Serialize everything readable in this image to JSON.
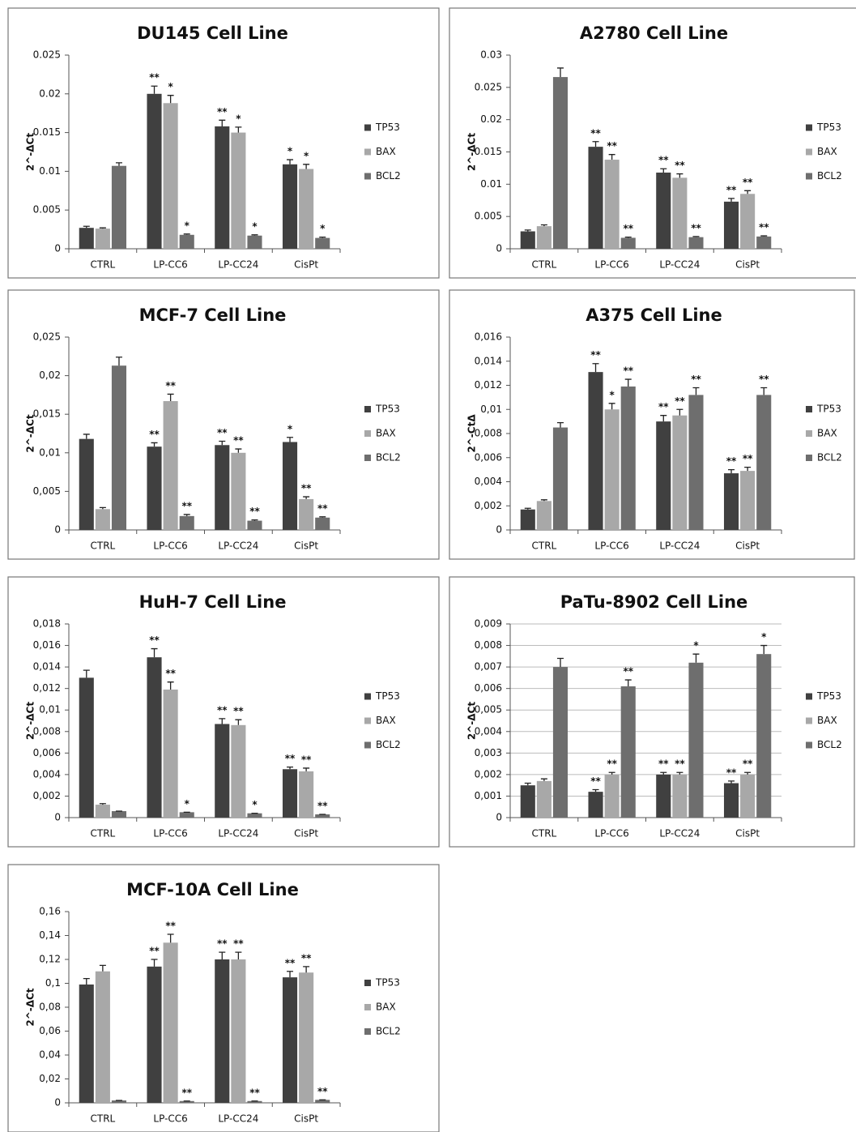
{
  "chart_data": [
    {
      "type": "bar",
      "title": "DU145 Cell Line",
      "y_label": "2^-ΔCt",
      "categories": [
        "CTRL",
        "LP-CC6",
        "LP-CC24",
        "CisPt"
      ],
      "ylim": [
        0,
        0.025
      ],
      "yticks": [
        0,
        0.005,
        0.01,
        0.015,
        0.02,
        0.025
      ],
      "grid": false,
      "series": [
        {
          "name": "TP53",
          "color": "#404040",
          "values": [
            0.0027,
            0.02,
            0.0158,
            0.0109
          ],
          "errors": [
            0.0002,
            0.001,
            0.0008,
            0.0006
          ],
          "annotations": [
            null,
            "**",
            "**",
            "*"
          ]
        },
        {
          "name": "BAX",
          "color": "#a8a8a8",
          "values": [
            0.0026,
            0.0188,
            0.015,
            0.0103
          ],
          "errors": [
            0.0001,
            0.001,
            0.0007,
            0.0006
          ],
          "annotations": [
            null,
            "*",
            "*",
            "*"
          ]
        },
        {
          "name": "BCL2",
          "color": "#6e6e6e",
          "values": [
            0.0107,
            0.0018,
            0.0017,
            0.0014
          ],
          "errors": [
            0.0004,
            0.0001,
            0.0001,
            0.0001
          ],
          "annotations": [
            null,
            "*",
            "*",
            "*"
          ]
        }
      ]
    },
    {
      "type": "bar",
      "title": "A2780 Cell Line",
      "y_label": "2^-ΔCt",
      "categories": [
        "CTRL",
        "LP-CC6",
        "LP-CC24",
        "CisPt"
      ],
      "ylim": [
        0,
        0.03
      ],
      "yticks": [
        0,
        0.005,
        0.01,
        0.015,
        0.02,
        0.025,
        0.03
      ],
      "grid": false,
      "series": [
        {
          "name": "TP53",
          "color": "#404040",
          "values": [
            0.0027,
            0.0158,
            0.0118,
            0.0073
          ],
          "errors": [
            0.0002,
            0.0008,
            0.0006,
            0.0005
          ],
          "annotations": [
            null,
            "**",
            "**",
            "**"
          ]
        },
        {
          "name": "BAX",
          "color": "#a8a8a8",
          "values": [
            0.0035,
            0.0138,
            0.011,
            0.0085
          ],
          "errors": [
            0.0002,
            0.0008,
            0.0006,
            0.0005
          ],
          "annotations": [
            null,
            "**",
            "**",
            "**"
          ]
        },
        {
          "name": "BCL2",
          "color": "#6e6e6e",
          "values": [
            0.0266,
            0.0017,
            0.0018,
            0.0019
          ],
          "errors": [
            0.0014,
            0.0001,
            0.0001,
            0.0001
          ],
          "annotations": [
            null,
            "**",
            "**",
            "**"
          ]
        }
      ]
    },
    {
      "type": "bar",
      "title": "MCF-7 Cell Line",
      "y_label": "2^-ΔCt",
      "categories": [
        "CTRL",
        "LP-CC6",
        "LP-CC24",
        "CisPt"
      ],
      "ylim": [
        0,
        0.025
      ],
      "yticks": [
        0,
        {
          "value": 0.005,
          "label": "0,005"
        },
        {
          "value": 0.01,
          "label": "0,01"
        },
        {
          "value": 0.015,
          "label": "0,015"
        },
        {
          "value": 0.02,
          "label": "0,02"
        },
        {
          "value": 0.025,
          "label": "0,025"
        }
      ],
      "grid": false,
      "series": [
        {
          "name": "TP53",
          "color": "#404040",
          "values": [
            0.0118,
            0.0108,
            0.011,
            0.0114
          ],
          "errors": [
            0.0006,
            0.0005,
            0.0005,
            0.0006
          ],
          "annotations": [
            null,
            "**",
            "**",
            "*"
          ]
        },
        {
          "name": "BAX",
          "color": "#a8a8a8",
          "values": [
            0.0027,
            0.0167,
            0.01,
            0.004
          ],
          "errors": [
            0.0002,
            0.0009,
            0.0005,
            0.0003
          ],
          "annotations": [
            null,
            "**",
            "**",
            "**"
          ]
        },
        {
          "name": "BCL2",
          "color": "#6e6e6e",
          "values": [
            0.0213,
            0.0018,
            0.0012,
            0.0016
          ],
          "errors": [
            0.0011,
            0.0002,
            0.0001,
            0.0001
          ],
          "annotations": [
            null,
            "**",
            "**",
            "**"
          ]
        }
      ]
    },
    {
      "type": "bar",
      "title": "A375 Cell Line",
      "y_label": "2^-CtΔ",
      "categories": [
        "CTRL",
        "LP-CC6",
        "LP-CC24",
        "CisPt"
      ],
      "ylim": [
        0,
        0.016
      ],
      "yticks": [
        0,
        {
          "value": 0.002,
          "label": "0,002"
        },
        {
          "value": 0.004,
          "label": "0,004"
        },
        {
          "value": 0.006,
          "label": "0,006"
        },
        {
          "value": 0.008,
          "label": "0,008"
        },
        {
          "value": 0.01,
          "label": "0,01"
        },
        {
          "value": 0.012,
          "label": "0,012"
        },
        {
          "value": 0.014,
          "label": "0,014"
        },
        {
          "value": 0.016,
          "label": "0,016"
        }
      ],
      "grid": false,
      "series": [
        {
          "name": "TP53",
          "color": "#404040",
          "values": [
            0.0017,
            0.0131,
            0.009,
            0.0047
          ],
          "errors": [
            0.0001,
            0.0007,
            0.0005,
            0.0003
          ],
          "annotations": [
            null,
            "**",
            "**",
            "**"
          ]
        },
        {
          "name": "BAX",
          "color": "#a8a8a8",
          "values": [
            0.0024,
            0.01,
            0.0095,
            0.0049
          ],
          "errors": [
            0.0001,
            0.0005,
            0.0005,
            0.0003
          ],
          "annotations": [
            null,
            "*",
            "**",
            "**"
          ]
        },
        {
          "name": "BCL2",
          "color": "#6e6e6e",
          "values": [
            0.0085,
            0.0119,
            0.0112,
            0.0112
          ],
          "errors": [
            0.0004,
            0.0006,
            0.0006,
            0.0006
          ],
          "annotations": [
            null,
            "**",
            "**",
            "**"
          ]
        }
      ]
    },
    {
      "type": "bar",
      "title": "HuH-7 Cell Line",
      "y_label": "2^-ΔCt",
      "categories": [
        "CTRL",
        "LP-CC6",
        "LP-CC24",
        "CisPt"
      ],
      "ylim": [
        0,
        0.018
      ],
      "yticks": [
        0,
        {
          "value": 0.002,
          "label": "0,002"
        },
        {
          "value": 0.004,
          "label": "0,004"
        },
        {
          "value": 0.006,
          "label": "0,006"
        },
        {
          "value": 0.008,
          "label": "0,008"
        },
        {
          "value": 0.01,
          "label": "0,01"
        },
        {
          "value": 0.012,
          "label": "0,012"
        },
        {
          "value": 0.014,
          "label": "0,014"
        },
        {
          "value": 0.016,
          "label": "0,016"
        },
        {
          "value": 0.018,
          "label": "0,018"
        }
      ],
      "grid": false,
      "series": [
        {
          "name": "TP53",
          "color": "#404040",
          "values": [
            0.013,
            0.0149,
            0.0087,
            0.0045
          ],
          "errors": [
            0.0007,
            0.0008,
            0.0005,
            0.0002
          ],
          "annotations": [
            null,
            "**",
            "**",
            "**"
          ]
        },
        {
          "name": "BAX",
          "color": "#a8a8a8",
          "values": [
            0.0012,
            0.0119,
            0.0086,
            0.0043
          ],
          "errors": [
            0.0001,
            0.0007,
            0.0005,
            0.0003
          ],
          "annotations": [
            null,
            "**",
            "**",
            "**"
          ]
        },
        {
          "name": "BCL2",
          "color": "#6e6e6e",
          "values": [
            0.0006,
            0.0005,
            0.0004,
            0.0003
          ],
          "errors": [
            0,
            0,
            0,
            0
          ],
          "annotations": [
            null,
            "*",
            "*",
            "**"
          ]
        }
      ]
    },
    {
      "type": "bar",
      "title": "PaTu-8902 Cell Line",
      "y_label": "2^-ΔCt",
      "categories": [
        "CTRL",
        "LP-CC6",
        "LP-CC24",
        "CisPt"
      ],
      "ylim": [
        0,
        0.009
      ],
      "yticks": [
        0,
        {
          "value": 0.001,
          "label": "0,001"
        },
        {
          "value": 0.002,
          "label": "0,002"
        },
        {
          "value": 0.003,
          "label": "0,003"
        },
        {
          "value": 0.004,
          "label": "0,004"
        },
        {
          "value": 0.005,
          "label": "0,005"
        },
        {
          "value": 0.006,
          "label": "0,006"
        },
        {
          "value": 0.007,
          "label": "0,007"
        },
        {
          "value": 0.008,
          "label": "0,008"
        },
        {
          "value": 0.009,
          "label": "0,009"
        }
      ],
      "grid": true,
      "series": [
        {
          "name": "TP53",
          "color": "#404040",
          "values": [
            0.0015,
            0.0012,
            0.002,
            0.0016
          ],
          "errors": [
            0.0001,
            0.0001,
            0.0001,
            0.0001
          ],
          "annotations": [
            null,
            "**",
            "**",
            "**"
          ]
        },
        {
          "name": "BAX",
          "color": "#a8a8a8",
          "values": [
            0.0017,
            0.002,
            0.002,
            0.002
          ],
          "errors": [
            0.0001,
            0.0001,
            0.0001,
            0.0001
          ],
          "annotations": [
            null,
            "**",
            "**",
            "**"
          ]
        },
        {
          "name": "BCL2",
          "color": "#6e6e6e",
          "values": [
            0.007,
            0.0061,
            0.0072,
            0.0076
          ],
          "errors": [
            0.0004,
            0.0003,
            0.0004,
            0.0004
          ],
          "annotations": [
            null,
            "**",
            "*",
            "*"
          ]
        }
      ]
    },
    {
      "type": "bar",
      "title": "MCF-10A Cell Line",
      "y_label": "2^-ΔCt",
      "categories": [
        "CTRL",
        "LP-CC6",
        "LP-CC24",
        "CisPt"
      ],
      "ylim": [
        0,
        0.16
      ],
      "yticks": [
        0,
        {
          "value": 0.02,
          "label": "0,02"
        },
        {
          "value": 0.04,
          "label": "0,04"
        },
        {
          "value": 0.06,
          "label": "0,06"
        },
        {
          "value": 0.08,
          "label": "0,08"
        },
        {
          "value": 0.1,
          "label": "0,1"
        },
        {
          "value": 0.12,
          "label": "0,12"
        },
        {
          "value": 0.14,
          "label": "0,14"
        },
        {
          "value": 0.16,
          "label": "0,16"
        }
      ],
      "grid": false,
      "series": [
        {
          "name": "TP53",
          "color": "#404040",
          "values": [
            0.099,
            0.114,
            0.12,
            0.105
          ],
          "errors": [
            0.005,
            0.006,
            0.006,
            0.005
          ],
          "annotations": [
            null,
            "**",
            "**",
            "**"
          ]
        },
        {
          "name": "BAX",
          "color": "#a8a8a8",
          "values": [
            0.11,
            0.134,
            0.12,
            0.109
          ],
          "errors": [
            0.005,
            0.007,
            0.006,
            0.005
          ],
          "annotations": [
            null,
            "**",
            "**",
            "**"
          ]
        },
        {
          "name": "BCL2",
          "color": "#6e6e6e",
          "values": [
            0.002,
            0.0015,
            0.0015,
            0.0025
          ],
          "errors": [
            0,
            0,
            0,
            0
          ],
          "annotations": [
            null,
            "**",
            "**",
            "**"
          ]
        }
      ]
    }
  ]
}
